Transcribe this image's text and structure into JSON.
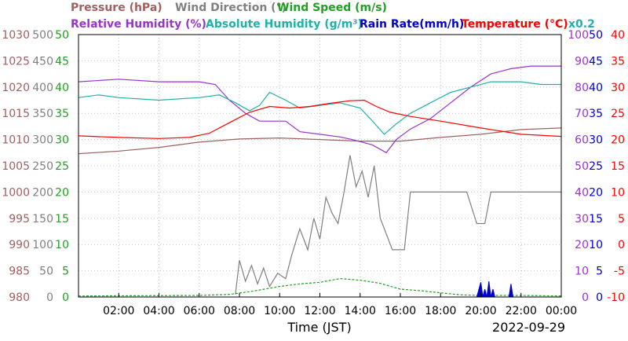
{
  "chart_data": {
    "type": "line",
    "date_label": "2022-09-29",
    "xlabel": "Time (JST)",
    "xlim": [
      "00:00",
      "24:00"
    ],
    "x_ticks": [
      "02:00",
      "04:00",
      "06:00",
      "08:00",
      "10:00",
      "12:00",
      "14:00",
      "16:00",
      "18:00",
      "20:00",
      "22:00",
      "00:00"
    ],
    "legend": {
      "row1": [
        {
          "key": "pressure",
          "text": "Pressure (hPa)",
          "color": "#a06060"
        },
        {
          "key": "wind_direction",
          "text": "Wind Direction (°)",
          "color": "#808080"
        },
        {
          "key": "wind_speed",
          "text": "Wind Speed (m/s)",
          "color": "#20a020"
        }
      ],
      "row2": [
        {
          "key": "relative_humidity",
          "text": "Relative Humidity (%)",
          "color": "#9933cc"
        },
        {
          "key": "absolute_humidity",
          "text": "Absolute Humidity (g/m³)",
          "color": "#20b0a8"
        },
        {
          "key": "rain_rate",
          "text": "Rain Rate(mm/h)",
          "color": "#0000cc"
        },
        {
          "key": "temperature",
          "text": "Temperature (°C)",
          "color": "#ff0000"
        }
      ],
      "factor": "x0.2"
    },
    "axes": {
      "pressure": {
        "ylim": [
          980,
          1030
        ],
        "ticks": [
          "980",
          "985",
          "990",
          "995",
          "1000",
          "1005",
          "1010",
          "1015",
          "1020",
          "1025",
          "1030"
        ],
        "color": "#a06060"
      },
      "wind_direction": {
        "ylim": [
          0,
          500
        ],
        "ticks": [
          "0",
          "50",
          "100",
          "150",
          "200",
          "250",
          "300",
          "350",
          "400",
          "450",
          "500"
        ],
        "color": "#808080"
      },
      "wind_speed": {
        "ylim": [
          0,
          50
        ],
        "ticks": [
          "0",
          "5",
          "10",
          "15",
          "20",
          "25",
          "30",
          "35",
          "40",
          "45",
          "50"
        ],
        "color": "#20a020"
      },
      "humidity": {
        "ylim": [
          0,
          100
        ],
        "ticks": [
          "0",
          "10",
          "20",
          "30",
          "40",
          "50",
          "60",
          "70",
          "80",
          "90",
          "100"
        ],
        "color": "#9933cc"
      },
      "rain_rate": {
        "ylim": [
          0,
          50
        ],
        "ticks": [
          "0",
          "5",
          "10",
          "15",
          "20",
          "25",
          "30",
          "35",
          "40",
          "45",
          "50"
        ],
        "color": "#0000cc"
      },
      "temperature": {
        "ylim": [
          -10,
          40
        ],
        "ticks": [
          "-10",
          "-5",
          "0",
          "5",
          "10",
          "15",
          "20",
          "25",
          "30",
          "35",
          "40"
        ],
        "color": "#ff0000"
      }
    },
    "series": [
      {
        "name": "Pressure (hPa)",
        "axis": "pressure",
        "color": "#a06060",
        "points": [
          [
            0,
            1007.3
          ],
          [
            2,
            1007.8
          ],
          [
            4,
            1008.5
          ],
          [
            6,
            1009.5
          ],
          [
            8,
            1010.1
          ],
          [
            10,
            1010.3
          ],
          [
            12,
            1010.0
          ],
          [
            14,
            1009.7
          ],
          [
            16,
            1009.7
          ],
          [
            18,
            1010.4
          ],
          [
            20,
            1011.0
          ],
          [
            22,
            1011.9
          ],
          [
            24,
            1012.2
          ]
        ]
      },
      {
        "name": "Relative Humidity (%)",
        "axis": "humidity",
        "color": "#9933cc",
        "points": [
          [
            0,
            82
          ],
          [
            2,
            83
          ],
          [
            4,
            82
          ],
          [
            6,
            82
          ],
          [
            6.8,
            81
          ],
          [
            7.5,
            75
          ],
          [
            8.3,
            70
          ],
          [
            9,
            67
          ],
          [
            10.3,
            67
          ],
          [
            11,
            63
          ],
          [
            12,
            62
          ],
          [
            13,
            61
          ],
          [
            13.6,
            60
          ],
          [
            14.6,
            58
          ],
          [
            15.3,
            55
          ],
          [
            15.8,
            60
          ],
          [
            16.5,
            64
          ],
          [
            17.5,
            68
          ],
          [
            18.5,
            74
          ],
          [
            19.5,
            80
          ],
          [
            20.5,
            85
          ],
          [
            21.5,
            87
          ],
          [
            22.5,
            88
          ],
          [
            24,
            88
          ]
        ]
      },
      {
        "name": "Absolute Humidity (g/m³)",
        "axis": "humidity",
        "color": "#20b0a8",
        "points": [
          [
            0,
            76
          ],
          [
            1,
            77
          ],
          [
            2,
            76
          ],
          [
            4,
            75
          ],
          [
            6,
            76
          ],
          [
            7,
            77
          ],
          [
            7.8,
            74
          ],
          [
            8.5,
            71
          ],
          [
            9,
            73
          ],
          [
            9.5,
            78
          ],
          [
            10.3,
            75
          ],
          [
            11,
            72
          ],
          [
            12,
            73
          ],
          [
            13,
            74
          ],
          [
            14,
            72
          ],
          [
            14.5,
            68
          ],
          [
            15.2,
            62
          ],
          [
            15.8,
            66
          ],
          [
            16.5,
            70
          ],
          [
            17.5,
            74
          ],
          [
            18.5,
            78
          ],
          [
            19.5,
            80
          ],
          [
            20.5,
            82
          ],
          [
            21,
            82
          ],
          [
            22,
            82
          ],
          [
            23,
            81
          ],
          [
            24,
            81
          ]
        ]
      },
      {
        "name": "Temperature (°C)",
        "axis": "temperature",
        "color": "#ff0000",
        "points": [
          [
            0,
            20.7
          ],
          [
            2,
            20.4
          ],
          [
            4,
            20.2
          ],
          [
            5.5,
            20.4
          ],
          [
            6.5,
            21.2
          ],
          [
            7.5,
            23.2
          ],
          [
            8.5,
            25.2
          ],
          [
            9.5,
            26.3
          ],
          [
            10.5,
            26.0
          ],
          [
            11.5,
            26.3
          ],
          [
            12.5,
            26.9
          ],
          [
            13.5,
            27.4
          ],
          [
            14.2,
            27.5
          ],
          [
            14.8,
            26.3
          ],
          [
            15.5,
            25.2
          ],
          [
            16.5,
            24.4
          ],
          [
            18,
            23.5
          ],
          [
            20,
            22.2
          ],
          [
            22,
            21.0
          ],
          [
            24,
            20.6
          ]
        ]
      },
      {
        "name": "Wind Direction (°)",
        "axis": "wind_direction",
        "color": "#808080",
        "points": [
          [
            7.8,
            5
          ],
          [
            8,
            70
          ],
          [
            8.3,
            30
          ],
          [
            8.6,
            60
          ],
          [
            8.9,
            25
          ],
          [
            9.2,
            55
          ],
          [
            9.5,
            20
          ],
          [
            9.9,
            45
          ],
          [
            10.3,
            35
          ],
          [
            10.6,
            80
          ],
          [
            11,
            130
          ],
          [
            11.4,
            90
          ],
          [
            11.7,
            150
          ],
          [
            12,
            110
          ],
          [
            12.3,
            190
          ],
          [
            12.6,
            160
          ],
          [
            12.9,
            140
          ],
          [
            13.2,
            200
          ],
          [
            13.5,
            270
          ],
          [
            13.8,
            210
          ],
          [
            14.1,
            240
          ],
          [
            14.4,
            190
          ],
          [
            14.7,
            250
          ],
          [
            15,
            150
          ],
          [
            15.3,
            120
          ],
          [
            15.6,
            90
          ],
          [
            16.2,
            90
          ],
          [
            16.5,
            200
          ],
          [
            17,
            200
          ],
          [
            18,
            200
          ],
          [
            19.3,
            200
          ],
          [
            19.8,
            140
          ],
          [
            20.2,
            140
          ],
          [
            20.5,
            200
          ],
          [
            22,
            200
          ],
          [
            24,
            200
          ]
        ]
      },
      {
        "name": "Wind Speed (m/s)",
        "axis": "wind_speed",
        "color": "#20a020",
        "points": [
          [
            0,
            0.2
          ],
          [
            6,
            0.3
          ],
          [
            7.5,
            0.5
          ],
          [
            8.5,
            1.0
          ],
          [
            10,
            2.0
          ],
          [
            11,
            2.5
          ],
          [
            12,
            2.8
          ],
          [
            13,
            3.5
          ],
          [
            14,
            3.2
          ],
          [
            15,
            2.6
          ],
          [
            16,
            1.5
          ],
          [
            17,
            1.2
          ],
          [
            18,
            0.8
          ],
          [
            19,
            0.4
          ],
          [
            20,
            0.3
          ],
          [
            22,
            0.3
          ],
          [
            24,
            0.2
          ]
        ]
      },
      {
        "name": "Rain Rate(mm/h)",
        "axis": "rain_rate",
        "color": "#0000cc",
        "points": [
          [
            19.8,
            0
          ],
          [
            20.0,
            2.8
          ],
          [
            20.1,
            0
          ],
          [
            20.2,
            1.5
          ],
          [
            20.3,
            0
          ],
          [
            20.4,
            3
          ],
          [
            20.5,
            0
          ],
          [
            20.6,
            1.5
          ],
          [
            20.7,
            0
          ],
          [
            21.4,
            0
          ],
          [
            21.5,
            2.5
          ],
          [
            21.6,
            0
          ]
        ]
      }
    ]
  }
}
